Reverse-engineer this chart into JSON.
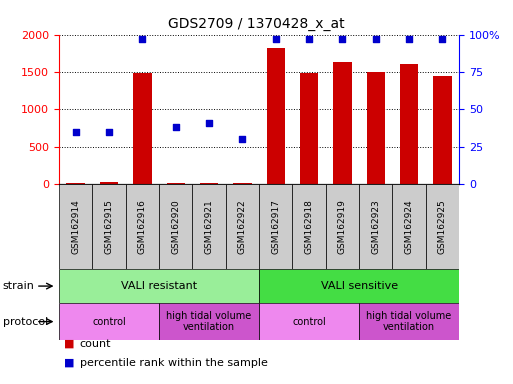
{
  "title": "GDS2709 / 1370428_x_at",
  "samples": [
    "GSM162914",
    "GSM162915",
    "GSM162916",
    "GSM162920",
    "GSM162921",
    "GSM162922",
    "GSM162917",
    "GSM162918",
    "GSM162919",
    "GSM162923",
    "GSM162924",
    "GSM162925"
  ],
  "counts": [
    20,
    25,
    1480,
    18,
    22,
    16,
    1820,
    1480,
    1640,
    1500,
    1610,
    1440
  ],
  "percentiles": [
    35,
    35,
    97,
    38,
    41,
    30,
    97,
    97,
    97,
    97,
    97,
    97
  ],
  "ylim_left": [
    0,
    2000
  ],
  "ylim_right": [
    0,
    100
  ],
  "yticks_left": [
    0,
    500,
    1000,
    1500,
    2000
  ],
  "yticks_right": [
    0,
    25,
    50,
    75,
    100
  ],
  "ytick_labels_right": [
    "0",
    "25",
    "50",
    "75",
    "100%"
  ],
  "bar_color": "#cc0000",
  "dot_color": "#0000cc",
  "strain_groups": [
    {
      "label": "VALI resistant",
      "start": 0,
      "end": 6,
      "color": "#99ee99"
    },
    {
      "label": "VALI sensitive",
      "start": 6,
      "end": 12,
      "color": "#44dd44"
    }
  ],
  "protocol_groups": [
    {
      "label": "control",
      "start": 0,
      "end": 3,
      "color": "#ee88ee"
    },
    {
      "label": "high tidal volume\nventilation",
      "start": 3,
      "end": 6,
      "color": "#cc55cc"
    },
    {
      "label": "control",
      "start": 6,
      "end": 9,
      "color": "#ee88ee"
    },
    {
      "label": "high tidal volume\nventilation",
      "start": 9,
      "end": 12,
      "color": "#cc55cc"
    }
  ],
  "legend_items": [
    {
      "label": "count",
      "color": "#cc0000"
    },
    {
      "label": "percentile rank within the sample",
      "color": "#0000cc"
    }
  ],
  "tick_fontsize": 8,
  "title_fontsize": 10
}
